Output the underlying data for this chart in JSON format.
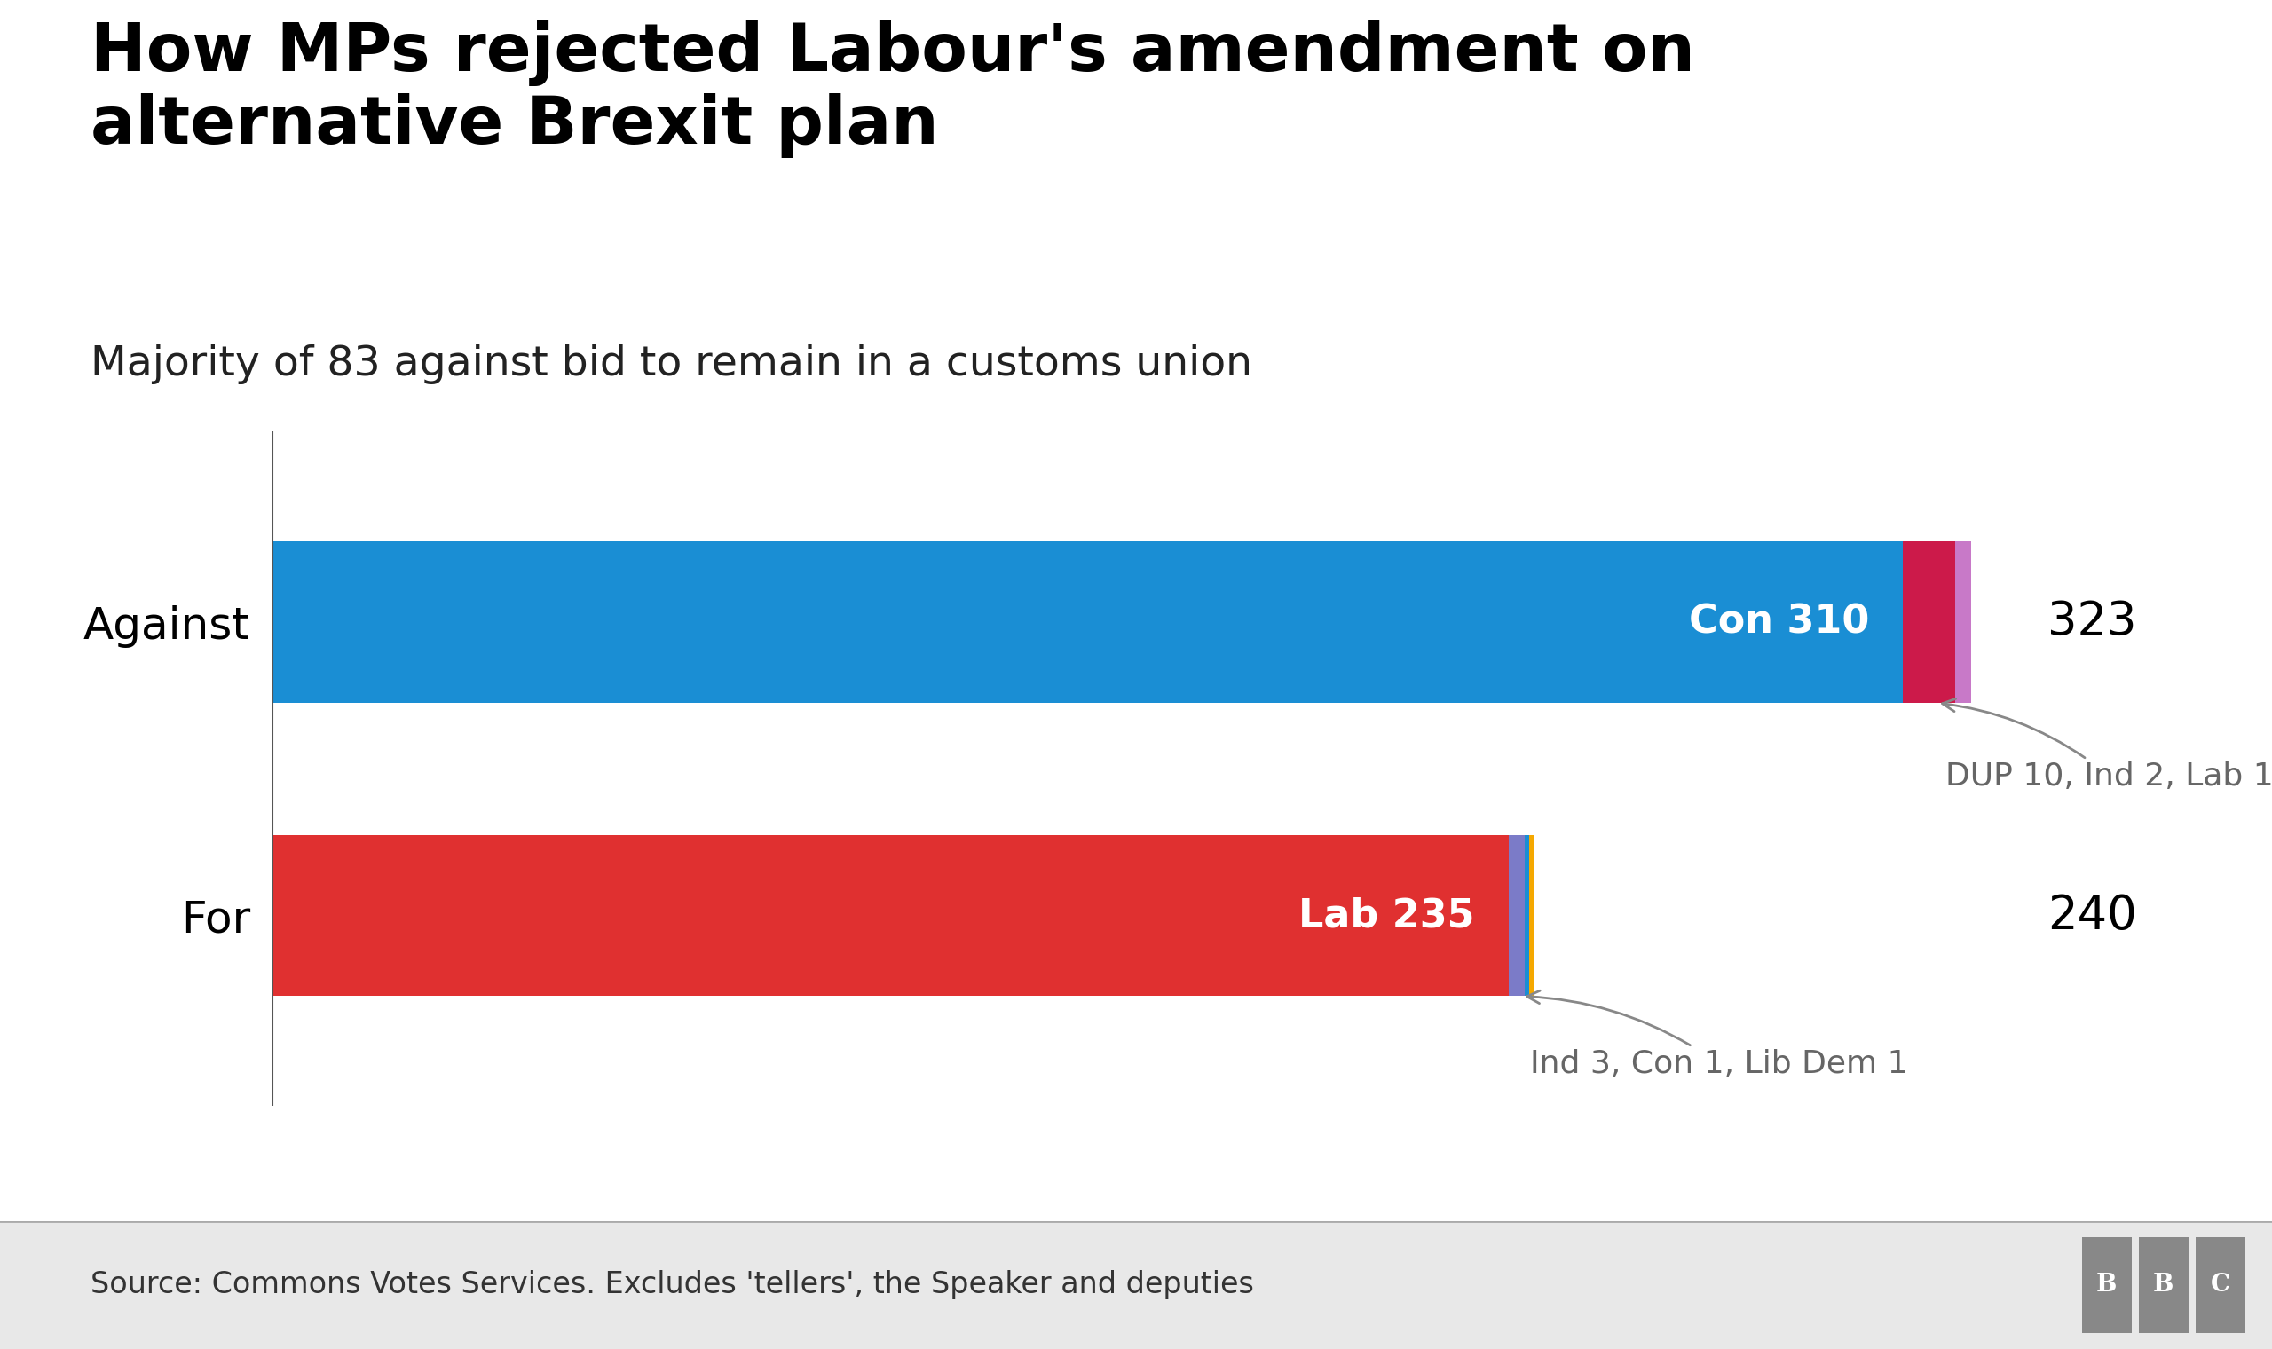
{
  "title": "How MPs rejected Labour's amendment on\nalternative Brexit plan",
  "subtitle": "Majority of 83 against bid to remain in a customs union",
  "source": "Source: Commons Votes Services. Excludes 'tellers', the Speaker and deputies",
  "against": {
    "label": "Against",
    "total": 323,
    "segments": [
      {
        "party": "Con",
        "value": 310,
        "color": "#1a8ed4"
      },
      {
        "party": "DUP",
        "value": 10,
        "color": "#cc1a4a"
      },
      {
        "party": "Ind",
        "value": 2,
        "color": "#c879c8"
      },
      {
        "party": "Lab",
        "value": 1,
        "color": "#c879c8"
      }
    ],
    "main_label": "Con 310",
    "annotation": "DUP 10, Ind 2, Lab 1"
  },
  "for": {
    "label": "For",
    "total": 240,
    "segments": [
      {
        "party": "Lab",
        "value": 235,
        "color": "#e03030"
      },
      {
        "party": "Ind",
        "value": 3,
        "color": "#7b7bc8"
      },
      {
        "party": "Con",
        "value": 1,
        "color": "#1a8ed4"
      },
      {
        "party": "LibDem",
        "value": 1,
        "color": "#f5a800"
      }
    ],
    "main_label": "Lab 235",
    "annotation": "Ind 3, Con 1, Lib Dem 1"
  },
  "max_value": 323,
  "background_color": "#ffffff",
  "title_color": "#000000",
  "subtitle_color": "#222222",
  "title_fontsize": 54,
  "subtitle_fontsize": 34,
  "bar_label_fontsize": 32,
  "total_fontsize": 38,
  "annotation_fontsize": 26,
  "source_fontsize": 24,
  "ylabel_fontsize": 36,
  "source_bg_color": "#e8e8e8"
}
